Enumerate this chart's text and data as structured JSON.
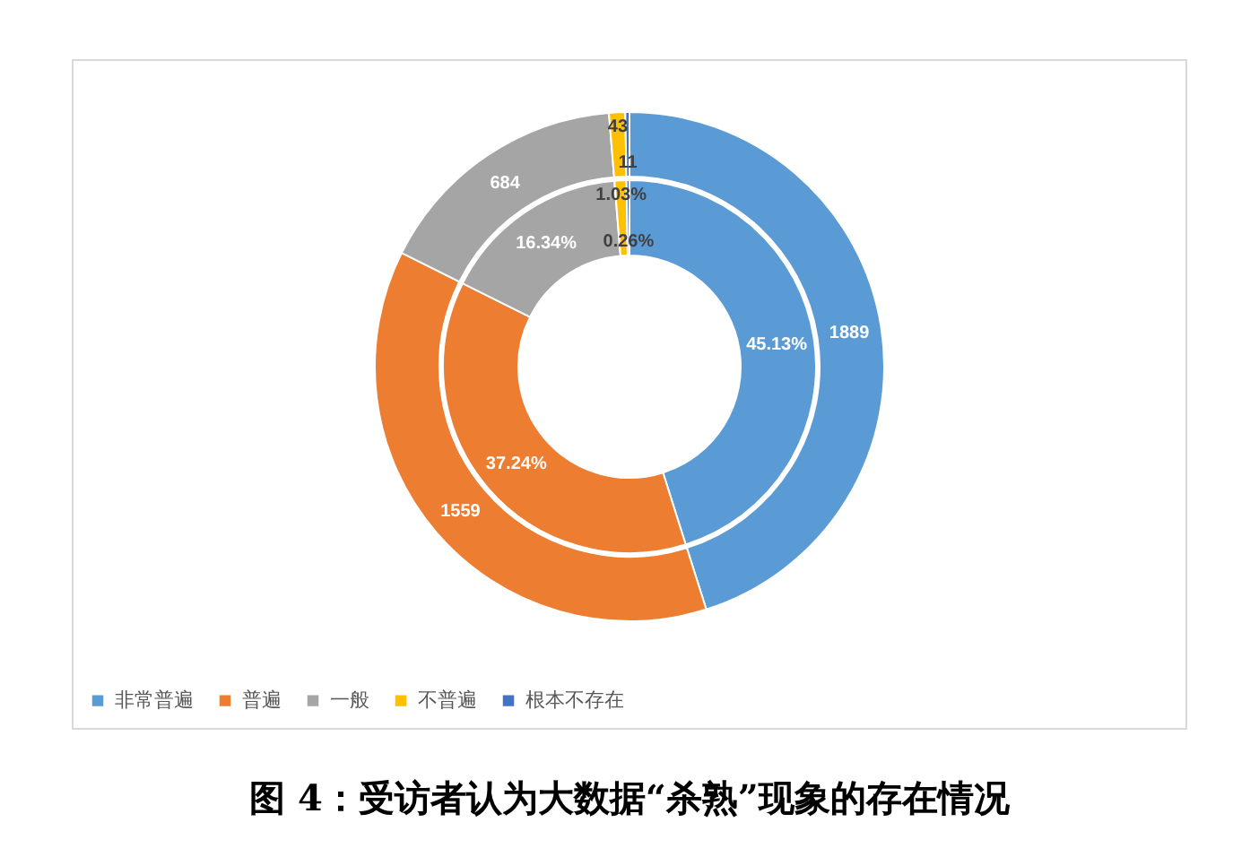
{
  "chart_data": {
    "type": "donut",
    "title": "图 4：受访者认为大数据“杀熟”现象的存在情况",
    "categories": [
      "非常普遍",
      "普遍",
      "一般",
      "不普遍",
      "根本不存在"
    ],
    "colors": [
      "#5b9bd5",
      "#ed7d31",
      "#a5a5a5",
      "#ffc000",
      "#4472c4"
    ],
    "series": [
      {
        "values": [
          1889,
          1559,
          684,
          43,
          11
        ],
        "value_labels": [
          "1889",
          "1559",
          "684",
          "43",
          "11"
        ]
      },
      {
        "values": [
          45.13,
          37.24,
          16.34,
          1.03,
          0.26
        ],
        "value_labels": [
          "45.13%",
          "37.24%",
          "16.34%",
          "1.03%",
          "0.26%"
        ]
      }
    ],
    "legend": "bottom"
  }
}
